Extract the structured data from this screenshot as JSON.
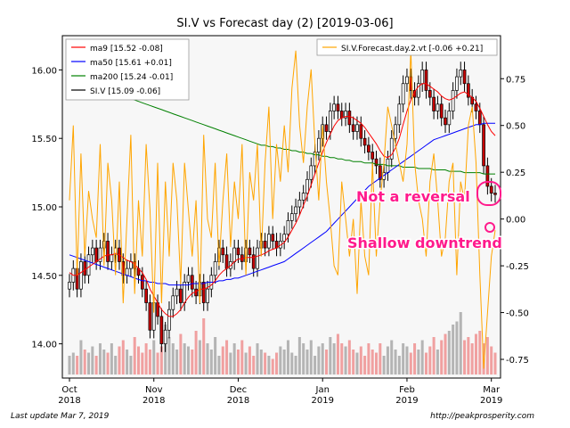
{
  "chart_data": {
    "type": "candlestick+line",
    "title": "SI.V vs Forecast day (2)  [2019-03-06]",
    "x_ticks": [
      {
        "label": "Oct\n2018",
        "index": 0
      },
      {
        "label": "Nov\n2018",
        "index": 22
      },
      {
        "label": "Dec\n2018",
        "index": 44
      },
      {
        "label": "Jan\n2019",
        "index": 66
      },
      {
        "label": "Feb\n2019",
        "index": 88
      },
      {
        "label": "Mar\n2019",
        "index": 110
      }
    ],
    "y_left": {
      "ylim": [
        13.75,
        16.25
      ],
      "ticks": [
        "14.00",
        "14.50",
        "15.00",
        "15.50",
        "16.00"
      ]
    },
    "y_right": {
      "ylim": [
        -0.85,
        0.98
      ],
      "ticks": [
        "-0.75",
        "-0.50",
        "-0.25",
        "0.00",
        "0.25",
        "0.50",
        "0.75"
      ]
    },
    "legend_left": [
      {
        "label": "ma9 [15.52 -0.08]",
        "color": "#ff0000"
      },
      {
        "label": "ma50 [15.61 +0.01]",
        "color": "#0000ff"
      },
      {
        "label": "ma200 [15.24 -0.01]",
        "color": "#008000"
      },
      {
        "label": "SI.V [15.09 -0.06]",
        "color": "#000000"
      }
    ],
    "legend_right": [
      {
        "label": "SI.V.Forecast.day.2.vt [-0.06 +0.21]",
        "color": "#ffa500"
      }
    ],
    "annotations": [
      {
        "text": "Not a reversal",
        "color": "#ff1a8c"
      },
      {
        "text": "Shallow downtrend",
        "color": "#ff1a8c"
      }
    ],
    "close": [
      14.45,
      14.55,
      14.4,
      14.6,
      14.5,
      14.65,
      14.7,
      14.6,
      14.7,
      14.75,
      14.6,
      14.65,
      14.7,
      14.6,
      14.5,
      14.55,
      14.6,
      14.55,
      14.5,
      14.4,
      14.3,
      14.1,
      14.3,
      14.2,
      14.0,
      14.1,
      14.25,
      14.35,
      14.4,
      14.3,
      14.45,
      14.5,
      14.4,
      14.35,
      14.45,
      14.3,
      14.4,
      14.5,
      14.6,
      14.7,
      14.65,
      14.55,
      14.6,
      14.7,
      14.65,
      14.6,
      14.7,
      14.65,
      14.55,
      14.7,
      14.75,
      14.7,
      14.8,
      14.75,
      14.7,
      14.75,
      14.8,
      14.9,
      14.95,
      15.0,
      15.05,
      15.1,
      15.2,
      15.3,
      15.4,
      15.5,
      15.6,
      15.55,
      15.7,
      15.75,
      15.7,
      15.65,
      15.7,
      15.6,
      15.55,
      15.6,
      15.5,
      15.45,
      15.4,
      15.35,
      15.3,
      15.2,
      15.25,
      15.35,
      15.5,
      15.6,
      15.75,
      15.9,
      15.95,
      15.85,
      15.8,
      15.9,
      16.0,
      15.85,
      15.8,
      15.7,
      15.75,
      15.65,
      15.6,
      15.7,
      15.85,
      15.95,
      16.0,
      15.9,
      15.8,
      15.75,
      15.7,
      15.6,
      15.3,
      15.15,
      15.1,
      15.09
    ],
    "ma9": [
      14.52,
      14.5,
      14.5,
      14.52,
      14.54,
      14.56,
      14.58,
      14.6,
      14.62,
      14.64,
      14.65,
      14.65,
      14.66,
      14.65,
      14.63,
      14.61,
      14.6,
      14.58,
      14.55,
      14.52,
      14.47,
      14.4,
      14.35,
      14.3,
      14.25,
      14.22,
      14.2,
      14.2,
      14.22,
      14.25,
      14.3,
      14.34,
      14.37,
      14.38,
      14.4,
      14.4,
      14.41,
      14.43,
      14.46,
      14.5,
      14.53,
      14.55,
      14.57,
      14.6,
      14.62,
      14.62,
      14.63,
      14.63,
      14.63,
      14.64,
      14.65,
      14.66,
      14.68,
      14.69,
      14.7,
      14.72,
      14.74,
      14.78,
      14.83,
      14.88,
      14.94,
      15.01,
      15.08,
      15.16,
      15.24,
      15.32,
      15.4,
      15.47,
      15.53,
      15.59,
      15.63,
      15.65,
      15.66,
      15.66,
      15.65,
      15.63,
      15.61,
      15.58,
      15.54,
      15.5,
      15.46,
      15.41,
      15.37,
      15.36,
      15.38,
      15.43,
      15.5,
      15.6,
      15.7,
      15.78,
      15.84,
      15.88,
      15.9,
      15.9,
      15.88,
      15.86,
      15.84,
      15.81,
      15.79,
      15.78,
      15.79,
      15.81,
      15.83,
      15.84,
      15.82,
      15.8,
      15.77,
      15.72,
      15.66,
      15.6,
      15.55,
      15.52
    ],
    "ma50": [
      14.65,
      14.64,
      14.63,
      14.62,
      14.61,
      14.6,
      14.59,
      14.58,
      14.57,
      14.56,
      14.55,
      14.54,
      14.53,
      14.52,
      14.51,
      14.5,
      14.49,
      14.48,
      14.47,
      14.46,
      14.46,
      14.45,
      14.45,
      14.44,
      14.44,
      14.44,
      14.43,
      14.43,
      14.43,
      14.43,
      14.43,
      14.43,
      14.44,
      14.44,
      14.44,
      14.44,
      14.45,
      14.45,
      14.45,
      14.46,
      14.46,
      14.47,
      14.47,
      14.48,
      14.48,
      14.49,
      14.5,
      14.51,
      14.52,
      14.53,
      14.54,
      14.55,
      14.56,
      14.57,
      14.58,
      14.59,
      14.6,
      14.62,
      14.64,
      14.66,
      14.68,
      14.7,
      14.72,
      14.74,
      14.76,
      14.78,
      14.8,
      14.82,
      14.85,
      14.88,
      14.91,
      14.94,
      14.97,
      15.0,
      15.03,
      15.06,
      15.09,
      15.12,
      15.15,
      15.17,
      15.19,
      15.21,
      15.23,
      15.25,
      15.27,
      15.29,
      15.31,
      15.33,
      15.35,
      15.37,
      15.39,
      15.41,
      15.43,
      15.45,
      15.47,
      15.49,
      15.5,
      15.51,
      15.52,
      15.53,
      15.54,
      15.55,
      15.56,
      15.57,
      15.58,
      15.59,
      15.6,
      15.6,
      15.61,
      15.61,
      15.61,
      15.61
    ],
    "ma200": [
      15.95,
      15.94,
      15.93,
      15.92,
      15.91,
      15.9,
      15.89,
      15.88,
      15.87,
      15.86,
      15.85,
      15.84,
      15.83,
      15.82,
      15.81,
      15.8,
      15.79,
      15.78,
      15.77,
      15.76,
      15.75,
      15.74,
      15.73,
      15.72,
      15.71,
      15.7,
      15.69,
      15.68,
      15.67,
      15.66,
      15.65,
      15.64,
      15.63,
      15.62,
      15.61,
      15.6,
      15.59,
      15.58,
      15.57,
      15.56,
      15.55,
      15.54,
      15.53,
      15.52,
      15.51,
      15.5,
      15.49,
      15.48,
      15.47,
      15.46,
      15.45,
      15.45,
      15.44,
      15.44,
      15.43,
      15.43,
      15.42,
      15.42,
      15.41,
      15.41,
      15.4,
      15.4,
      15.39,
      15.39,
      15.38,
      15.38,
      15.37,
      15.37,
      15.36,
      15.36,
      15.35,
      15.35,
      15.34,
      15.34,
      15.33,
      15.33,
      15.33,
      15.32,
      15.32,
      15.32,
      15.31,
      15.31,
      15.31,
      15.3,
      15.3,
      15.3,
      15.3,
      15.29,
      15.29,
      15.29,
      15.29,
      15.28,
      15.28,
      15.28,
      15.28,
      15.27,
      15.27,
      15.27,
      15.27,
      15.26,
      15.26,
      15.26,
      15.26,
      15.25,
      15.25,
      15.25,
      15.25,
      15.25,
      15.24,
      15.24,
      15.24,
      15.24
    ],
    "forecast": [
      0.1,
      0.5,
      -0.3,
      0.35,
      -0.2,
      0.15,
      0.0,
      -0.1,
      0.4,
      -0.25,
      0.3,
      0.1,
      -0.3,
      0.2,
      -0.45,
      0.0,
      0.45,
      -0.4,
      0.1,
      -0.2,
      0.4,
      0.05,
      -0.5,
      0.3,
      -0.45,
      0.2,
      -0.2,
      0.3,
      0.1,
      -0.35,
      0.3,
      0.05,
      -0.2,
      0.1,
      -0.45,
      0.45,
      0.0,
      -0.1,
      0.3,
      -0.25,
      0.1,
      0.35,
      -0.15,
      0.2,
      0.0,
      0.4,
      -0.3,
      0.25,
      0.1,
      0.4,
      -0.2,
      0.3,
      0.6,
      0.0,
      0.4,
      0.2,
      0.5,
      0.25,
      0.7,
      0.9,
      0.5,
      0.3,
      0.6,
      0.8,
      0.4,
      0.1,
      0.5,
      0.2,
      0.0,
      -0.25,
      -0.3,
      0.2,
      0.0,
      -0.2,
      0.0,
      -0.4,
      0.1,
      -0.2,
      -0.3,
      0.3,
      -0.2,
      0.1,
      0.3,
      0.6,
      0.5,
      0.4,
      0.3,
      0.2,
      0.4,
      0.9,
      0.3,
      0.1,
      0.0,
      -0.2,
      0.2,
      0.35,
      0.1,
      -0.2,
      -0.1,
      0.2,
      0.3,
      -0.3,
      0.2,
      0.1,
      0.5,
      0.6,
      0.3,
      -0.3,
      -0.8,
      -0.5,
      -0.2,
      -0.06
    ],
    "volume_level": [
      0.3,
      0.35,
      0.3,
      0.55,
      0.4,
      0.35,
      0.45,
      0.3,
      0.5,
      0.4,
      0.35,
      0.5,
      0.3,
      0.45,
      0.55,
      0.4,
      0.3,
      0.6,
      0.45,
      0.35,
      0.5,
      0.4,
      0.55,
      0.35,
      0.45,
      0.8,
      0.6,
      0.5,
      0.4,
      0.65,
      0.5,
      0.45,
      0.4,
      0.7,
      0.55,
      0.9,
      0.5,
      0.4,
      0.6,
      0.3,
      0.45,
      0.55,
      0.35,
      0.5,
      0.4,
      0.55,
      0.35,
      0.45,
      0.3,
      0.5,
      0.4,
      0.35,
      0.3,
      0.25,
      0.35,
      0.45,
      0.4,
      0.55,
      0.35,
      0.3,
      0.6,
      0.5,
      0.4,
      0.55,
      0.3,
      0.45,
      0.5,
      0.4,
      0.6,
      0.5,
      0.65,
      0.5,
      0.45,
      0.55,
      0.4,
      0.35,
      0.45,
      0.3,
      0.5,
      0.4,
      0.35,
      0.5,
      0.3,
      0.45,
      0.55,
      0.4,
      0.3,
      0.5,
      0.45,
      0.35,
      0.5,
      0.4,
      0.55,
      0.35,
      0.45,
      0.6,
      0.4,
      0.55,
      0.65,
      0.7,
      0.8,
      0.85,
      1.0,
      0.55,
      0.6,
      0.5,
      0.65,
      0.7,
      0.5,
      0.6,
      0.45,
      0.35
    ]
  },
  "footer": {
    "left": "Last update Mar  7, 2019",
    "right": "http://peakprosperity.com"
  }
}
